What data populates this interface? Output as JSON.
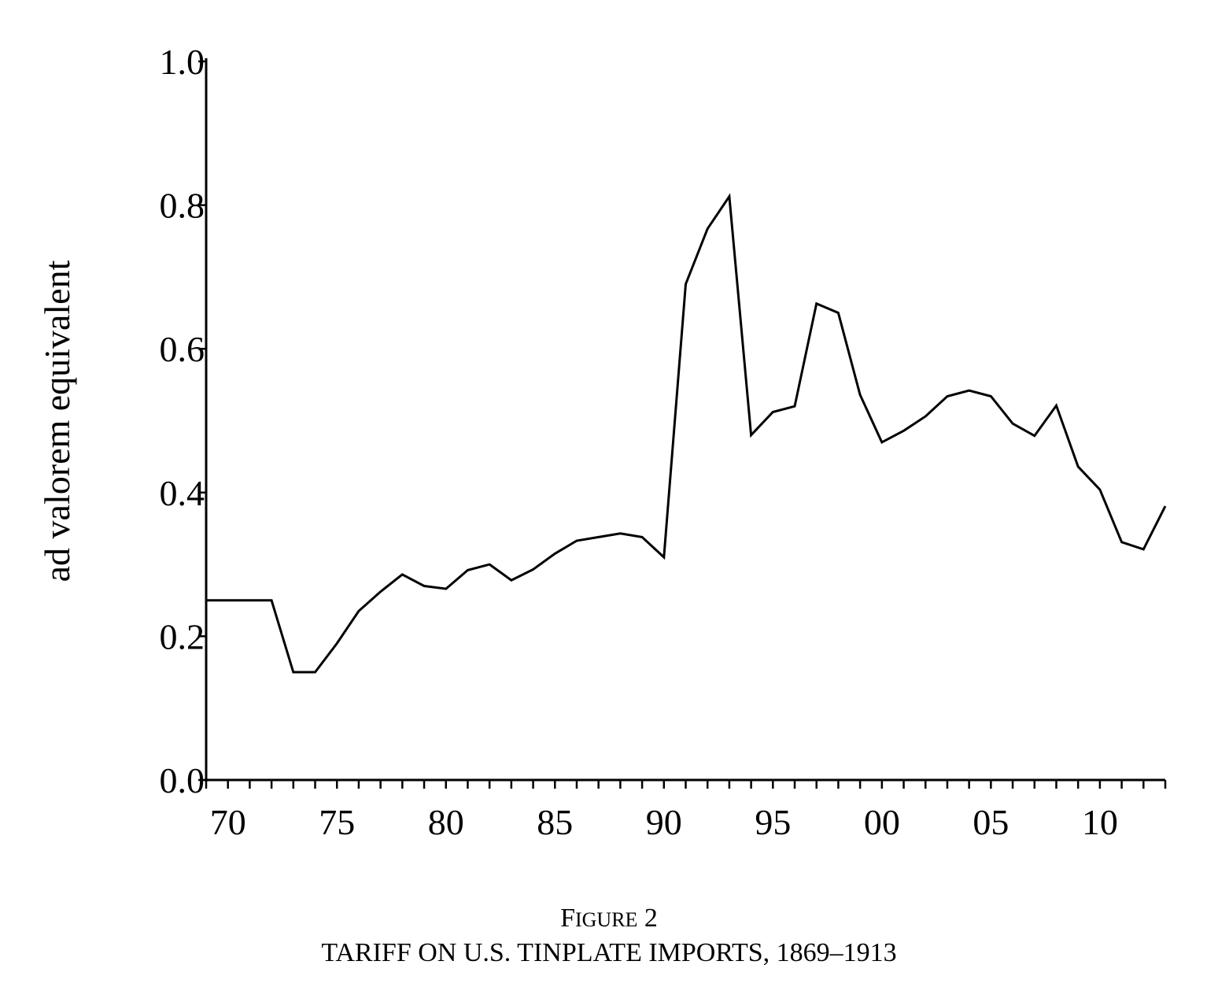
{
  "figure": {
    "label_first": "F",
    "label_rest": "IGURE",
    "label_number": "2",
    "title": "TARIFF ON U.S. TINPLATE IMPORTS, 1869–1913"
  },
  "chart_data": {
    "type": "line",
    "title": "TARIFF ON U.S. TINPLATE IMPORTS, 1869–1913",
    "xlabel": "",
    "ylabel": "ad valorem equivalent",
    "xlim": [
      1869,
      1913
    ],
    "ylim": [
      0.0,
      1.0
    ],
    "y_ticks": [
      0.0,
      0.2,
      0.4,
      0.6,
      0.8,
      1.0
    ],
    "y_tick_labels": [
      "0.0",
      "0.2",
      "0.4",
      "0.6",
      "0.8",
      "1.0"
    ],
    "x_ticks": [
      1870,
      1875,
      1880,
      1885,
      1890,
      1895,
      1900,
      1905,
      1910
    ],
    "x_tick_labels": [
      "70",
      "75",
      "80",
      "85",
      "90",
      "95",
      "00",
      "05",
      "10"
    ],
    "grid": false,
    "legend": "none",
    "series": [
      {
        "x": [
          1869,
          1870,
          1871,
          1872,
          1873,
          1874,
          1875,
          1876,
          1877,
          1878,
          1879,
          1880,
          1881,
          1882,
          1883,
          1884,
          1885,
          1886,
          1887,
          1888,
          1889,
          1890,
          1891,
          1892,
          1893,
          1894,
          1895,
          1896,
          1897,
          1898,
          1899,
          1900,
          1901,
          1902,
          1903,
          1904,
          1905,
          1906,
          1907,
          1908,
          1909,
          1910,
          1911,
          1912,
          1913
        ],
        "values": [
          0.25,
          0.25,
          0.25,
          0.25,
          0.15,
          0.15,
          0.19,
          0.235,
          0.262,
          0.286,
          0.27,
          0.266,
          0.292,
          0.3,
          0.278,
          0.293,
          0.315,
          0.333,
          0.338,
          0.343,
          0.338,
          0.31,
          0.69,
          0.767,
          0.812,
          0.48,
          0.512,
          0.52,
          0.663,
          0.65,
          0.536,
          0.47,
          0.486,
          0.506,
          0.534,
          0.542,
          0.534,
          0.496,
          0.479,
          0.521,
          0.436,
          0.404,
          0.331,
          0.321,
          0.381
        ]
      }
    ]
  }
}
